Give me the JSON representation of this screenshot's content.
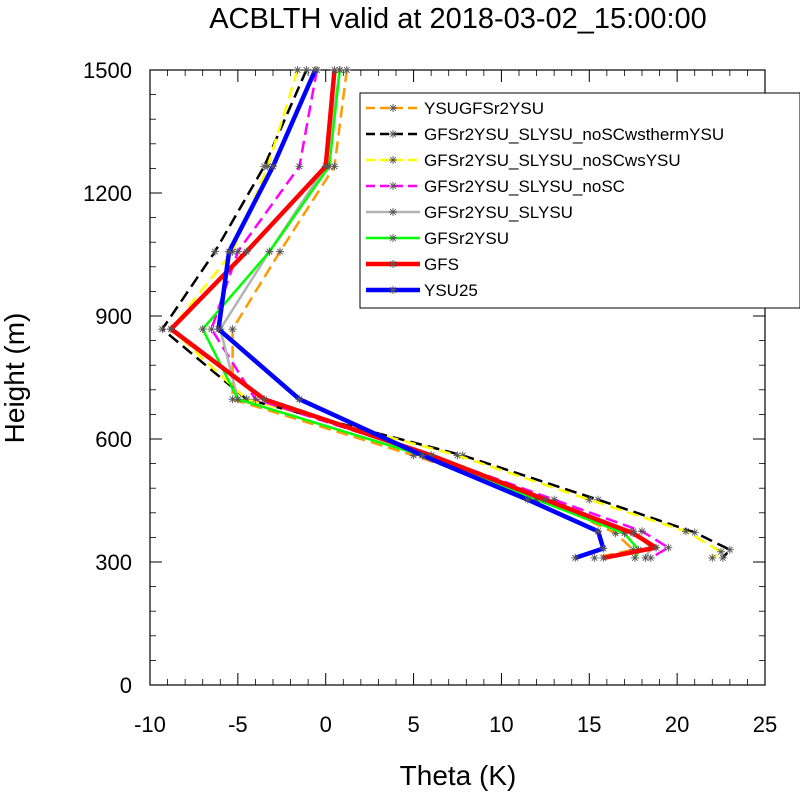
{
  "chart_data": {
    "type": "line",
    "title": "ACBLTH valid at 2018-03-02_15:00:00",
    "xlabel": "Theta (K)",
    "ylabel": "Height (m)",
    "xlim": [
      -10,
      25
    ],
    "ylim": [
      0,
      1500
    ],
    "xticks": [
      -10,
      -5,
      0,
      5,
      10,
      15,
      20,
      25
    ],
    "yticks": [
      0,
      300,
      600,
      900,
      1200,
      1500
    ],
    "xtick_labels": [
      "-10",
      "-5",
      "0",
      "5",
      "10",
      "15",
      "20",
      "25"
    ],
    "ytick_labels": [
      "0",
      "300",
      "600",
      "900",
      "1200",
      "1500"
    ],
    "grid": false,
    "legend_position": "top-right",
    "series": [
      {
        "name": "YSUGFSr2YSU",
        "color": "#ff9900",
        "dash": "dashed",
        "width": 2.5,
        "points": [
          [
            1.2,
            1500
          ],
          [
            0.5,
            1265
          ],
          [
            -2.6,
            1057
          ],
          [
            -5.3,
            868
          ],
          [
            -5.3,
            697
          ],
          [
            5.0,
            560
          ],
          [
            12.5,
            452
          ],
          [
            16.5,
            370
          ],
          [
            17.5,
            330
          ],
          [
            15.3,
            310
          ]
        ]
      },
      {
        "name": "GFSr2YSU_SLYSU_noSCwsthermYSU",
        "color": "#000000",
        "dash": "dashed",
        "width": 2.5,
        "points": [
          [
            -1.1,
            1500
          ],
          [
            -3.5,
            1265
          ],
          [
            -6.3,
            1057
          ],
          [
            -9.3,
            868
          ],
          [
            -4.5,
            697
          ],
          [
            7.8,
            560
          ],
          [
            15.5,
            452
          ],
          [
            21.0,
            372
          ],
          [
            23.0,
            330
          ],
          [
            22.6,
            310
          ]
        ]
      },
      {
        "name": "GFSr2YSU_SLYSU_noSCwsYSU",
        "color": "#ffff00",
        "dash": "dashed",
        "width": 2.5,
        "points": [
          [
            -1.6,
            1500
          ],
          [
            -3.3,
            1265
          ],
          [
            -5.3,
            1057
          ],
          [
            -8.8,
            868
          ],
          [
            -4.5,
            697
          ],
          [
            7.5,
            560
          ],
          [
            15.0,
            452
          ],
          [
            20.5,
            375
          ],
          [
            22.5,
            325
          ],
          [
            22.0,
            310
          ]
        ]
      },
      {
        "name": "GFSr2YSU_SLYSU_noSC",
        "color": "#ff00ff",
        "dash": "dashed",
        "width": 2.5,
        "points": [
          [
            -0.5,
            1500
          ],
          [
            -1.5,
            1265
          ],
          [
            -5.0,
            1057
          ],
          [
            -6.5,
            868
          ],
          [
            -4.0,
            697
          ],
          [
            6.0,
            560
          ],
          [
            13.0,
            452
          ],
          [
            18.0,
            375
          ],
          [
            19.5,
            335
          ],
          [
            18.5,
            310
          ]
        ]
      },
      {
        "name": "GFSr2YSU_SLYSU",
        "color": "#b3b3b3",
        "dash": "solid",
        "width": 2.5,
        "points": [
          [
            0.8,
            1500
          ],
          [
            0.0,
            1265
          ],
          [
            -3.2,
            1057
          ],
          [
            -6.0,
            868
          ],
          [
            -5.0,
            697
          ],
          [
            5.5,
            560
          ],
          [
            12.0,
            452
          ],
          [
            17.5,
            375
          ],
          [
            18.5,
            335
          ],
          [
            18.2,
            310
          ]
        ]
      },
      {
        "name": "GFSr2YSU",
        "color": "#00ff00",
        "dash": "solid",
        "width": 2.5,
        "points": [
          [
            0.8,
            1500
          ],
          [
            0.2,
            1265
          ],
          [
            -3.2,
            1057
          ],
          [
            -7.0,
            868
          ],
          [
            -5.0,
            697
          ],
          [
            5.5,
            560
          ],
          [
            12.0,
            452
          ],
          [
            17.0,
            370
          ],
          [
            17.8,
            330
          ],
          [
            17.6,
            310
          ]
        ]
      },
      {
        "name": "GFS",
        "color": "#ff0000",
        "dash": "solid",
        "width": 4.5,
        "points": [
          [
            0.5,
            1500
          ],
          [
            0,
            1265
          ],
          [
            -4.5,
            1057
          ],
          [
            -8.8,
            868
          ],
          [
            -3.5,
            697
          ],
          [
            6.0,
            560
          ],
          [
            12.5,
            452
          ],
          [
            17.5,
            370
          ],
          [
            18.8,
            335
          ],
          [
            15.8,
            310
          ]
        ]
      },
      {
        "name": "YSU25",
        "color": "#0000ff",
        "dash": "solid",
        "width": 4.5,
        "points": [
          [
            -0.6,
            1500
          ],
          [
            -3.0,
            1265
          ],
          [
            -5.5,
            1057
          ],
          [
            -6.1,
            868
          ],
          [
            -1.5,
            697
          ],
          [
            5.5,
            560
          ],
          [
            11.5,
            452
          ],
          [
            15.5,
            375
          ],
          [
            15.8,
            333
          ],
          [
            14.2,
            310
          ]
        ]
      }
    ]
  }
}
